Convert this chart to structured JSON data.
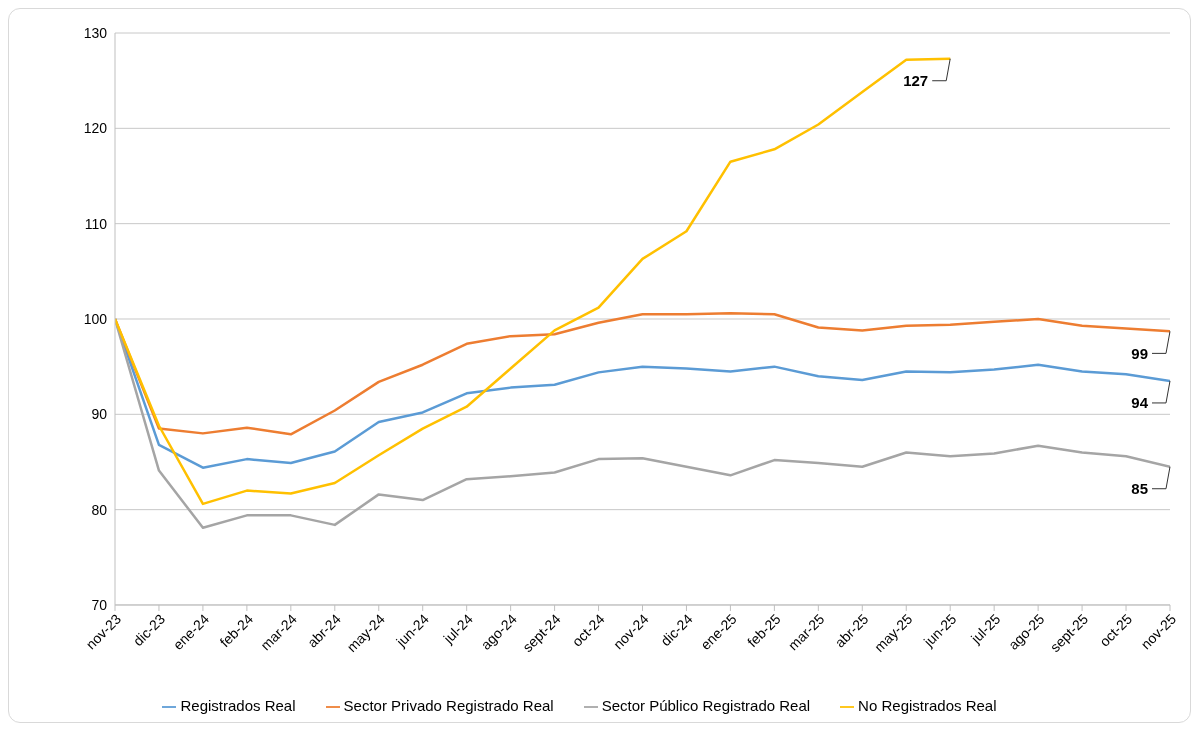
{
  "chart_data": {
    "type": "line",
    "categories": [
      "nov-23",
      "dic-23",
      "ene-24",
      "feb-24",
      "mar-24",
      "abr-24",
      "may-24",
      "jun-24",
      "jul-24",
      "ago-24",
      "sept-24",
      "oct-24",
      "nov-24",
      "dic-24",
      "ene-25",
      "feb-25",
      "mar-25",
      "abr-25",
      "may-25",
      "jun-25",
      "jul-25",
      "ago-25",
      "sept-25",
      "oct-25",
      "nov-25"
    ],
    "series": [
      {
        "name": "Registrados Real",
        "color": "#5b9bd5",
        "values": [
          100,
          86.8,
          84.4,
          85.3,
          84.9,
          86.1,
          89.2,
          90.2,
          92.2,
          92.8,
          93.1,
          94.4,
          95.0,
          94.8,
          94.5,
          95.0,
          94.0,
          93.6,
          94.5,
          94.4,
          94.7,
          95.2,
          94.5,
          94.2,
          93.5
        ]
      },
      {
        "name": "Sector Privado Registrado Real",
        "color": "#ed7d31",
        "values": [
          100,
          88.5,
          88.0,
          88.6,
          87.9,
          90.4,
          93.4,
          95.2,
          97.4,
          98.2,
          98.4,
          99.6,
          100.5,
          100.5,
          100.6,
          100.5,
          99.1,
          98.8,
          99.3,
          99.4,
          99.7,
          100.0,
          99.3,
          99.0,
          98.7
        ]
      },
      {
        "name": "Sector Público Registrado Real",
        "color": "#a5a5a5",
        "values": [
          100,
          84.1,
          78.1,
          79.4,
          79.4,
          78.4,
          81.6,
          81.0,
          83.2,
          83.5,
          83.9,
          85.3,
          85.4,
          84.5,
          83.6,
          85.2,
          84.9,
          84.5,
          86.0,
          85.6,
          85.9,
          86.7,
          86.0,
          85.6,
          84.5
        ]
      },
      {
        "name": "No Registrados Real",
        "color": "#ffc000",
        "values": [
          100,
          88.8,
          80.6,
          82.0,
          81.7,
          82.8,
          85.7,
          88.5,
          90.8,
          94.8,
          98.8,
          101.2,
          106.3,
          109.2,
          116.5,
          117.8,
          120.4,
          123.8,
          127.2,
          127.3,
          null,
          null,
          null,
          null,
          null
        ]
      }
    ],
    "ylim": [
      70,
      130
    ],
    "yticks": [
      70,
      80,
      90,
      100,
      110,
      120,
      130
    ],
    "grid": "y",
    "legend": "bottom",
    "marker": "none",
    "line_style": "solid",
    "annotations": [
      {
        "text": "127",
        "x": "jun-25",
        "y": 127.3
      },
      {
        "text": "99",
        "x": "nov-25",
        "y": 98.7
      },
      {
        "text": "94",
        "x": "nov-25",
        "y": 93.5
      },
      {
        "text": "85",
        "x": "nov-25",
        "y": 84.5
      }
    ]
  }
}
